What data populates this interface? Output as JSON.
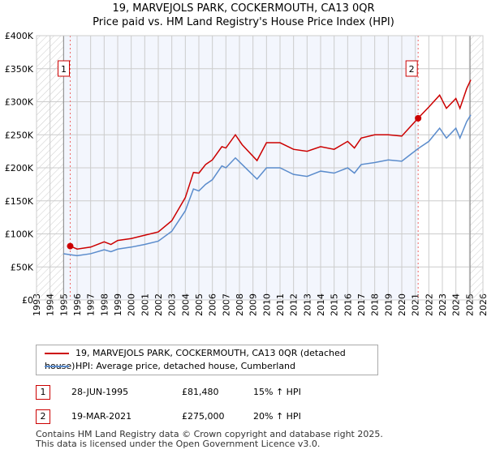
{
  "chart_data": {
    "type": "line",
    "title": "19, MARVEJOLS PARK, COCKERMOUTH, CA13 0QR",
    "subtitle": "Price paid vs. HM Land Registry's House Price Index (HPI)",
    "xlim": [
      1993,
      2026
    ],
    "ylim": [
      0,
      400000
    ],
    "x_ticks": [
      "1993",
      "1994",
      "1995",
      "1996",
      "1997",
      "1998",
      "1999",
      "2000",
      "2001",
      "2002",
      "2003",
      "2004",
      "2005",
      "2006",
      "2007",
      "2008",
      "2009",
      "2010",
      "2011",
      "2012",
      "2013",
      "2014",
      "2015",
      "2016",
      "2017",
      "2018",
      "2019",
      "2020",
      "2021",
      "2022",
      "2023",
      "2024",
      "2025",
      "2026"
    ],
    "y_ticks": [
      {
        "v": 0,
        "label": "£0"
      },
      {
        "v": 50000,
        "label": "£50K"
      },
      {
        "v": 100000,
        "label": "£100K"
      },
      {
        "v": 150000,
        "label": "£150K"
      },
      {
        "v": 200000,
        "label": "£200K"
      },
      {
        "v": 250000,
        "label": "£250K"
      },
      {
        "v": 300000,
        "label": "£300K"
      },
      {
        "v": 350000,
        "label": "£350K"
      },
      {
        "v": 400000,
        "label": "£400K"
      }
    ],
    "grid": true,
    "series": [
      {
        "name": "19, MARVEJOLS PARK, COCKERMOUTH, CA13 0QR (detached house)",
        "color": "#cc0000",
        "x": [
          1995.5,
          1996,
          1997,
          1998,
          1998.5,
          1999,
          2000,
          2001,
          2002,
          2003,
          2004,
          2004.6,
          2005,
          2005.5,
          2006,
          2006.7,
          2007,
          2007.7,
          2008.2,
          2009.3,
          2010,
          2011,
          2012,
          2013,
          2014,
          2015,
          2016,
          2016.5,
          2017,
          2018,
          2019,
          2020,
          2021.2,
          2022,
          2022.8,
          2023.3,
          2024,
          2024.3,
          2024.8,
          2025.1
        ],
        "y": [
          81480,
          77000,
          80000,
          88000,
          84000,
          90000,
          93000,
          98000,
          103000,
          120000,
          155000,
          193000,
          192000,
          205000,
          212000,
          232000,
          230000,
          250000,
          235000,
          211000,
          238000,
          238000,
          228000,
          225000,
          232000,
          228000,
          240000,
          230000,
          245000,
          250000,
          250000,
          248000,
          275000,
          292000,
          310000,
          290000,
          305000,
          290000,
          320000,
          333000
        ]
      },
      {
        "name": "HPI: Average price, detached house, Cumberland",
        "color": "#5b8ccc",
        "x": [
          1995,
          1996,
          1997,
          1998,
          1998.5,
          1999,
          2000,
          2001,
          2002,
          2003,
          2004,
          2004.6,
          2005,
          2005.5,
          2006,
          2006.7,
          2007,
          2007.7,
          2008.2,
          2009.3,
          2010,
          2011,
          2012,
          2013,
          2014,
          2015,
          2016,
          2016.5,
          2017,
          2018,
          2019,
          2020,
          2021.2,
          2022,
          2022.8,
          2023.3,
          2024,
          2024.3,
          2024.8,
          2025.1
        ],
        "y": [
          70000,
          67000,
          70000,
          76000,
          73000,
          77000,
          80000,
          84000,
          89000,
          104000,
          135000,
          168000,
          165000,
          175000,
          182000,
          203000,
          200000,
          215000,
          205000,
          183000,
          200000,
          200000,
          190000,
          187000,
          195000,
          192000,
          200000,
          192000,
          205000,
          208000,
          212000,
          210000,
          229000,
          240000,
          260000,
          245000,
          260000,
          245000,
          270000,
          280000
        ]
      }
    ],
    "annotations": [
      {
        "label": "1",
        "x": 1995.49,
        "y": 81480
      },
      {
        "label": "2",
        "x": 2021.21,
        "y": 275000
      }
    ],
    "hpi_range": [
      1995,
      2025.05
    ]
  },
  "legend": {
    "property": "19, MARVEJOLS PARK, COCKERMOUTH, CA13 0QR (detached house)",
    "hpi": "HPI: Average price, detached house, Cumberland"
  },
  "transactions": [
    {
      "num": "1",
      "date": "28-JUN-1995",
      "price": "£81,480",
      "hpi": "15% ↑ HPI"
    },
    {
      "num": "2",
      "date": "19-MAR-2021",
      "price": "£275,000",
      "hpi": "20% ↑ HPI"
    }
  ],
  "footer": [
    "Contains HM Land Registry data © Crown copyright and database right 2025.",
    "This data is licensed under the Open Government Licence v3.0."
  ]
}
